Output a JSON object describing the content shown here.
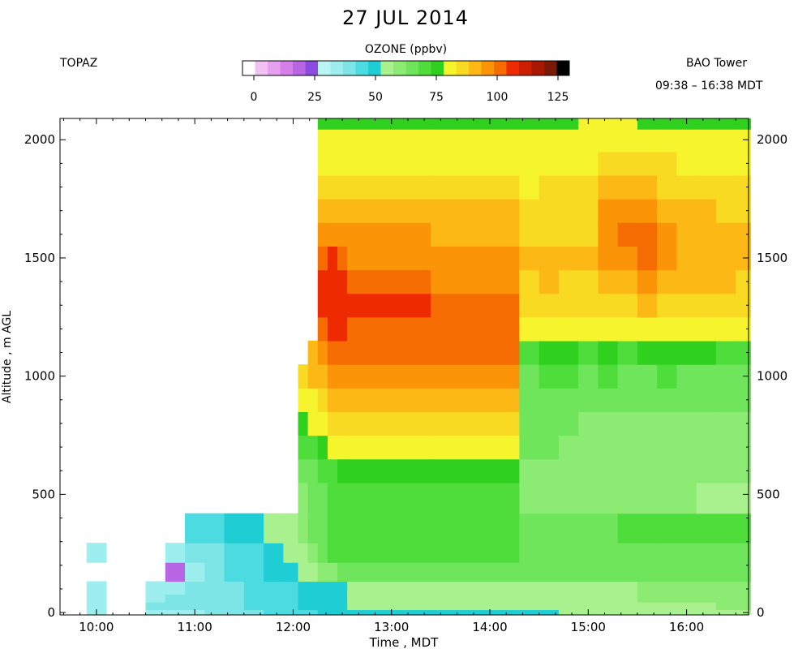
{
  "header": {
    "title": "27 JUL 2014",
    "left_label": "TOPAZ",
    "right_label": "BAO Tower",
    "time_range": "09:38 – 16:38 MDT"
  },
  "colorbar": {
    "title": "OZONE (ppbv)",
    "ticks": [
      "0",
      "25",
      "50",
      "75",
      "100",
      "125"
    ],
    "tick_values": [
      0,
      25,
      50,
      75,
      100,
      125
    ],
    "colors": [
      "#ffffff",
      "#f3c0f3",
      "#e7a0ef",
      "#d77fe9",
      "#b866e4",
      "#8b4be1",
      "#b9f5f5",
      "#9deeee",
      "#7de5e5",
      "#4cdbe0",
      "#1fcdd4",
      "#a9f18f",
      "#8ceb73",
      "#6fe55b",
      "#4fdd3b",
      "#2fd11e",
      "#f6f52d",
      "#f9da22",
      "#fcb815",
      "#fb9407",
      "#f56d02",
      "#ee2a00",
      "#cc1f00",
      "#a81700",
      "#7a1a05",
      "#000000"
    ],
    "range": [
      0,
      125
    ]
  },
  "chart_data": {
    "type": "heatmap",
    "xlabel": "Time , MDT",
    "ylabel": "Altitude , m AGL",
    "x_ticks": [
      "10:00",
      "11:00",
      "12:00",
      "13:00",
      "14:00",
      "15:00",
      "16:00"
    ],
    "x_tick_hours": [
      10,
      11,
      12,
      13,
      14,
      15,
      16
    ],
    "xlim": [
      9.63,
      16.63
    ],
    "y_ticks": [
      "0",
      "500",
      "1000",
      "1500",
      "2000"
    ],
    "y_tick_values": [
      0,
      500,
      1000,
      1500,
      2000
    ],
    "ylim": [
      -10,
      2090
    ],
    "z_label": "OZONE (ppbv)",
    "x_hours": [
      9.8,
      10.0,
      10.2,
      10.4,
      10.6,
      10.8,
      11.0,
      11.2,
      11.4,
      11.6,
      11.8,
      12.0,
      12.1,
      12.2,
      12.3,
      12.4,
      12.5,
      12.6,
      14.2,
      14.4,
      14.6,
      14.8,
      15.0,
      15.2,
      15.4,
      15.6,
      15.8,
      16.0,
      16.2,
      16.4,
      16.6
    ],
    "altitudes_m": [
      0,
      25,
      65,
      90,
      175,
      250,
      340,
      500,
      600,
      700,
      800,
      900,
      1000,
      1100,
      1200,
      1300,
      1400,
      1500,
      1600,
      1700,
      1800,
      1900,
      2000,
      2090
    ],
    "ozone_ppbv": [
      [
        null,
        null,
        null,
        null,
        null,
        null,
        null,
        null,
        null,
        null,
        null,
        null,
        null,
        null,
        null,
        null,
        null,
        null,
        null,
        null,
        null,
        null,
        null,
        null
      ],
      [
        37,
        38,
        37,
        37,
        null,
        36,
        null,
        null,
        null,
        null,
        null,
        null,
        null,
        null,
        null,
        null,
        null,
        null,
        null,
        null,
        null,
        null,
        null,
        null
      ],
      [
        null,
        null,
        null,
        null,
        null,
        null,
        null,
        null,
        null,
        null,
        null,
        null,
        null,
        null,
        null,
        null,
        null,
        null,
        null,
        null,
        null,
        null,
        null,
        null
      ],
      [
        null,
        null,
        null,
        null,
        null,
        null,
        null,
        null,
        null,
        null,
        null,
        null,
        null,
        null,
        null,
        null,
        null,
        null,
        null,
        null,
        null,
        null,
        null,
        null
      ],
      [
        36,
        39,
        38,
        37,
        null,
        null,
        null,
        null,
        null,
        null,
        null,
        null,
        null,
        null,
        null,
        null,
        null,
        null,
        null,
        null,
        null,
        null,
        null,
        null
      ],
      [
        36,
        39,
        39,
        38,
        21,
        36,
        null,
        null,
        null,
        null,
        null,
        null,
        null,
        null,
        null,
        null,
        null,
        null,
        null,
        null,
        null,
        null,
        null,
        null
      ],
      [
        38,
        40,
        40,
        39,
        38,
        40,
        45,
        null,
        null,
        null,
        null,
        null,
        null,
        null,
        null,
        null,
        null,
        null,
        null,
        null,
        null,
        null,
        null,
        null
      ],
      [
        39,
        41,
        41,
        40,
        39,
        41,
        46,
        null,
        null,
        null,
        null,
        null,
        null,
        null,
        null,
        null,
        null,
        null,
        null,
        null,
        null,
        null,
        null,
        null
      ],
      [
        41,
        43,
        43,
        42,
        44,
        46,
        49,
        null,
        null,
        null,
        null,
        null,
        null,
        null,
        null,
        null,
        null,
        null,
        null,
        null,
        null,
        null,
        null,
        null
      ],
      [
        43,
        45,
        45,
        44,
        47,
        48,
        51,
        null,
        null,
        null,
        null,
        null,
        null,
        null,
        null,
        null,
        null,
        null,
        null,
        null,
        null,
        null,
        null,
        null
      ],
      [
        45,
        47,
        47,
        46,
        49,
        50,
        53,
        null,
        null,
        null,
        null,
        null,
        null,
        null,
        null,
        null,
        null,
        null,
        null,
        null,
        null,
        null,
        null,
        null
      ],
      [
        46,
        48,
        48,
        48,
        51,
        53,
        56,
        null,
        null,
        null,
        null,
        null,
        null,
        null,
        null,
        null,
        null,
        null,
        null,
        null,
        null,
        null,
        null,
        null
      ],
      [
        47,
        49,
        49,
        49,
        53,
        56,
        58,
        58,
        63,
        68,
        73,
        78,
        86,
        null,
        null,
        null,
        null,
        null,
        null,
        null,
        null,
        null,
        null,
        null
      ],
      [
        48,
        50,
        50,
        50,
        56,
        62,
        64,
        63,
        66,
        72,
        77,
        81,
        88,
        90,
        null,
        null,
        null,
        null,
        null,
        null,
        null,
        null,
        null,
        null
      ],
      [
        49,
        51,
        51,
        51,
        59,
        66,
        67,
        66,
        69,
        75,
        80,
        85,
        90,
        95,
        100,
        104,
        104,
        100,
        94,
        88,
        84,
        80,
        77,
        73
      ],
      [
        50,
        52,
        52,
        52,
        62,
        69,
        70,
        69,
        72,
        77,
        82,
        87,
        92,
        97,
        101,
        105,
        104,
        101,
        95,
        89,
        85,
        81,
        77,
        73
      ],
      [
        50,
        52,
        52,
        52,
        64,
        70,
        71,
        70,
        73,
        78,
        83,
        88,
        93,
        97,
        101,
        103,
        102,
        98,
        94,
        89,
        85,
        81,
        78,
        74
      ],
      [
        51,
        53,
        53,
        53,
        65,
        71,
        72,
        71,
        74,
        79,
        85,
        90,
        94,
        98,
        100,
        101,
        99,
        96,
        92,
        88,
        84,
        80,
        78,
        74
      ],
      [
        51,
        53,
        53,
        53,
        66,
        71,
        72,
        70,
        74,
        79,
        85,
        90,
        94,
        97,
        98,
        98,
        96,
        93,
        90,
        87,
        83,
        80,
        77,
        73
      ],
      [
        52,
        53,
        54,
        54,
        63,
        64,
        66,
        60,
        62,
        63,
        64,
        65,
        67,
        72,
        78,
        83,
        86,
        87,
        85,
        83,
        81,
        79,
        77,
        74
      ],
      [
        52,
        53,
        55,
        55,
        64,
        65,
        66,
        61,
        62,
        63,
        64,
        66,
        70,
        76,
        80,
        84,
        87,
        88,
        86,
        84,
        82,
        80,
        78,
        75
      ],
      [
        53,
        54,
        56,
        56,
        64,
        65,
        67,
        60,
        61,
        62,
        63,
        65,
        68,
        74,
        78,
        83,
        86,
        87,
        86,
        84,
        82,
        80,
        78,
        76
      ],
      [
        53,
        54,
        56,
        56,
        64,
        66,
        67,
        59,
        60,
        61,
        62,
        64,
        67,
        72,
        77,
        82,
        85,
        87,
        86,
        85,
        83,
        81,
        79,
        77
      ],
      [
        54,
        55,
        57,
        57,
        64,
        66,
        67,
        59,
        60,
        61,
        62,
        65,
        68,
        73,
        78,
        83,
        88,
        92,
        95,
        92,
        87,
        83,
        80,
        77
      ],
      [
        54,
        55,
        57,
        57,
        64,
        66,
        68,
        58,
        59,
        60,
        61,
        63,
        67,
        72,
        77,
        82,
        87,
        93,
        99,
        95,
        88,
        84,
        80,
        77
      ],
      [
        55,
        56,
        58,
        58,
        64,
        66,
        68,
        58,
        59,
        60,
        61,
        63,
        67,
        73,
        80,
        87,
        94,
        100,
        97,
        92,
        87,
        83,
        79,
        76
      ],
      [
        55,
        56,
        58,
        58,
        64,
        67,
        68,
        58,
        59,
        60,
        62,
        64,
        68,
        74,
        80,
        86,
        91,
        95,
        94,
        90,
        86,
        82,
        78,
        75
      ],
      [
        56,
        57,
        59,
        59,
        63,
        66,
        68,
        58,
        59,
        60,
        61,
        63,
        67,
        73,
        79,
        84,
        88,
        90,
        90,
        88,
        85,
        81,
        78,
        75
      ],
      [
        56,
        57,
        59,
        59,
        63,
        66,
        68,
        57,
        58,
        59,
        61,
        63,
        67,
        73,
        79,
        84,
        88,
        89,
        89,
        87,
        84,
        80,
        77,
        74
      ],
      [
        57,
        58,
        60,
        60,
        63,
        66,
        68,
        57,
        58,
        59,
        61,
        63,
        67,
        72,
        78,
        83,
        87,
        88,
        88,
        86,
        83,
        80,
        77,
        74
      ],
      [
        57,
        58,
        60,
        60,
        63,
        66,
        69,
        57,
        58,
        59,
        61,
        63,
        67,
        72,
        78,
        83,
        86,
        87,
        87,
        85,
        82,
        79,
        77,
        74
      ]
    ],
    "grid": false
  }
}
